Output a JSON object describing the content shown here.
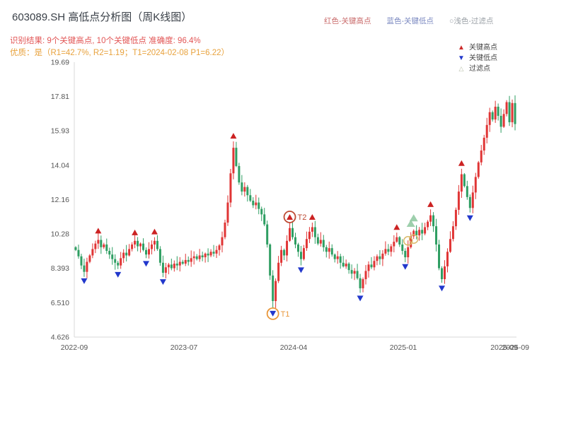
{
  "header": {
    "title": "603089.SH 高低点分析图（周K线图）",
    "legend": [
      {
        "label": "红色-关键高点",
        "color": "#c96a6a"
      },
      {
        "label": "蓝色-关键低点",
        "color": "#7a88c0"
      },
      {
        "label": "○浅色-过滤点",
        "color": "#9aa0a6"
      }
    ]
  },
  "annotations": {
    "line1": "识别结果: 9个关键高点, 10个关键低点  准确度: 96.4%",
    "line2": "优质：是（R1=42.7%, R2=1.19；T1=2024-02-08 P1=6.22）"
  },
  "analysis": {
    "num_key_highs": 9,
    "num_key_lows": 10,
    "accuracy": "96.4%",
    "r1": "42.7%",
    "r2": "1.19",
    "t1_date": "2024-02-08",
    "p1": "6.22"
  },
  "chart_legend": [
    {
      "glyph": "▲",
      "label": "关键高点",
      "color": "#cc2a2a"
    },
    {
      "glyph": "▼",
      "label": "关键低点",
      "color": "#2238cc"
    },
    {
      "glyph": "△",
      "label": "过滤点",
      "color": "#b9bfa9"
    }
  ],
  "colors": {
    "up": "#e03535",
    "down": "#2e9e62",
    "key_high": "#cc2222",
    "key_low": "#2238cc",
    "filtered_triangle": "#8cc79e",
    "filtered_ring": "#d9b96a",
    "t1": "#e9973a",
    "t2": "#bd4a33",
    "annotation1": "#e25555",
    "annotation2": "#e8a23d",
    "axis_text": "#555555",
    "axis_line": "#d9d9d9"
  },
  "chart_data": {
    "type": "candlestick",
    "symbol": "603089.SH",
    "period": "weekly",
    "title": "603089.SH 高低点分析图（周K线图）",
    "ylim": [
      4.626,
      19.69
    ],
    "y_ticks": [
      {
        "label": "19.69",
        "value": 19.69
      },
      {
        "label": "17.81",
        "value": 17.81
      },
      {
        "label": "15.93",
        "value": 15.93
      },
      {
        "label": "14.04",
        "value": 14.04
      },
      {
        "label": "12.16",
        "value": 12.16
      },
      {
        "label": "10.28",
        "value": 10.28
      },
      {
        "label": "8.393",
        "value": 8.393
      },
      {
        "label": "6.510",
        "value": 6.51
      },
      {
        "label": "4.626",
        "value": 4.626
      }
    ],
    "x_ticks": [
      {
        "label": "2022-09",
        "pos": 0.0
      },
      {
        "label": "2023-07",
        "pos": 0.248
      },
      {
        "label": "2024-04",
        "pos": 0.496
      },
      {
        "label": "2025-01",
        "pos": 0.744
      },
      {
        "label": "2025-09",
        "pos": 0.972
      },
      {
        "label": "2025-09",
        "pos": 0.998
      }
    ],
    "open_first": 9.55,
    "closes": [
      9.4,
      9.05,
      8.55,
      8.2,
      8.75,
      9.1,
      9.45,
      9.75,
      9.95,
      9.55,
      9.7,
      9.35,
      9.15,
      8.9,
      8.7,
      8.55,
      8.95,
      9.25,
      9.1,
      9.45,
      9.7,
      9.9,
      9.6,
      9.75,
      9.4,
      9.15,
      9.45,
      9.7,
      9.9,
      9.45,
      8.7,
      8.15,
      8.45,
      8.6,
      8.4,
      8.65,
      8.55,
      8.75,
      8.65,
      8.85,
      8.75,
      8.95,
      9.05,
      8.9,
      9.1,
      9.0,
      9.2,
      9.1,
      9.3,
      9.2,
      9.4,
      9.65,
      10.1,
      10.9,
      12.0,
      13.6,
      15.0,
      14.0,
      13.1,
      12.6,
      12.85,
      12.4,
      12.1,
      11.85,
      12.0,
      11.65,
      11.35,
      10.8,
      9.7,
      8.0,
      6.6,
      7.7,
      8.7,
      9.4,
      9.1,
      9.9,
      10.6,
      10.1,
      9.7,
      9.3,
      8.9,
      9.5,
      10.0,
      10.4,
      10.65,
      10.1,
      9.75,
      9.95,
      9.55,
      9.3,
      9.5,
      9.15,
      8.9,
      9.05,
      8.7,
      8.5,
      8.65,
      8.3,
      8.1,
      8.25,
      7.85,
      7.3,
      7.8,
      8.25,
      8.6,
      8.45,
      8.8,
      9.05,
      8.9,
      9.2,
      9.45,
      9.3,
      9.6,
      9.85,
      10.1,
      9.7,
      9.35,
      9.0,
      9.55,
      10.15,
      10.45,
      10.2,
      10.5,
      10.3,
      10.65,
      10.95,
      11.3,
      10.7,
      9.7,
      8.4,
      7.8,
      8.5,
      9.3,
      10.0,
      10.7,
      11.6,
      12.6,
      13.55,
      12.9,
      12.3,
      11.7,
      12.55,
      13.4,
      14.2,
      14.85,
      15.55,
      16.25,
      16.95,
      16.55,
      17.25,
      16.75,
      16.15,
      16.85,
      17.5,
      16.4,
      17.45,
      16.3
    ],
    "markers": {
      "key_highs": [
        {
          "i": 8,
          "price": 10.15
        },
        {
          "i": 21,
          "price": 10.05
        },
        {
          "i": 28,
          "price": 10.1
        },
        {
          "i": 56,
          "price": 15.35
        },
        {
          "i": 76,
          "price": 10.9,
          "label": "T2",
          "circled": true
        },
        {
          "i": 84,
          "price": 10.9
        },
        {
          "i": 114,
          "price": 10.35
        },
        {
          "i": 126,
          "price": 11.6
        },
        {
          "i": 137,
          "price": 13.85
        }
      ],
      "key_lows": [
        {
          "i": 3,
          "price": 8.0
        },
        {
          "i": 15,
          "price": 8.35
        },
        {
          "i": 25,
          "price": 8.95
        },
        {
          "i": 31,
          "price": 7.95
        },
        {
          "i": 70,
          "price": 6.22,
          "label": "T1",
          "circled": true
        },
        {
          "i": 80,
          "price": 8.6
        },
        {
          "i": 101,
          "price": 7.05
        },
        {
          "i": 117,
          "price": 8.78
        },
        {
          "i": 130,
          "price": 7.6
        },
        {
          "i": 140,
          "price": 11.45
        }
      ],
      "filtered": [
        {
          "i": 119,
          "price": 10.55,
          "shape": "triangle"
        },
        {
          "i": 120,
          "price": 10.85,
          "shape": "triangle"
        },
        {
          "i": 118,
          "price": 9.9,
          "shape": "ring"
        },
        {
          "i": 120,
          "price": 10.0,
          "shape": "ring"
        }
      ]
    }
  }
}
